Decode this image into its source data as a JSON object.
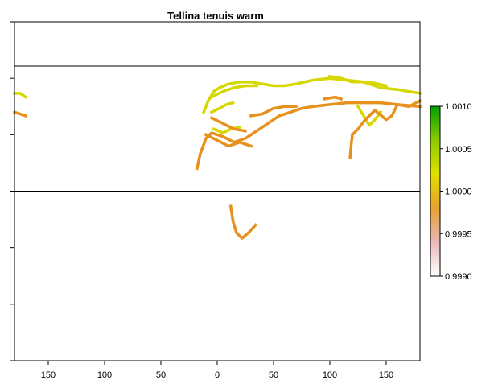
{
  "chart_data": {
    "type": "heatmap",
    "title": "Tellina tenuis warm",
    "xlabel": "",
    "ylabel": "",
    "xlim": [
      -180,
      180
    ],
    "ylim": [
      -90,
      90
    ],
    "x_ticks": [
      -150,
      -100,
      -50,
      0,
      50,
      100,
      150
    ],
    "x_tick_labels": [
      "150",
      "100",
      "50",
      "0",
      "50",
      "100",
      "150"
    ],
    "y_ticks": [
      -90,
      -60,
      -30,
      0,
      30,
      60,
      90
    ],
    "reference_lines_y": [
      0,
      66.5
    ],
    "legend": {
      "position": "right",
      "min": 0.999,
      "max": 1.001,
      "ticks": [
        0.999,
        0.9995,
        1.0,
        1.0005,
        1.001
      ],
      "tick_labels": [
        "0.9990",
        "0.9995",
        "1.0000",
        "1.0005",
        "1.0010"
      ],
      "colors": [
        "#ffffff",
        "#e8b8b8",
        "#e8a030",
        "#e0e000",
        "#8ccc00",
        "#00a000"
      ]
    },
    "series": [
      {
        "value": 1.0,
        "color": "#d7d700",
        "polylines": [
          [
            [
              -5,
              42
            ],
            [
              2,
              44
            ],
            [
              8,
              46
            ],
            [
              14,
              47
            ]
          ],
          [
            [
              -12,
              42
            ],
            [
              -8,
              48
            ],
            [
              -3,
              53
            ],
            [
              2,
              55
            ],
            [
              10,
              57
            ],
            [
              20,
              58
            ],
            [
              30,
              58
            ],
            [
              40,
              57
            ],
            [
              50,
              56
            ],
            [
              60,
              56
            ],
            [
              70,
              57
            ],
            [
              85,
              59
            ],
            [
              100,
              60
            ],
            [
              115,
              59
            ],
            [
              130,
              58
            ],
            [
              145,
              55
            ],
            [
              160,
              54
            ],
            [
              180,
              52
            ]
          ],
          [
            [
              -5,
              50
            ],
            [
              5,
              53
            ],
            [
              15,
              55
            ],
            [
              25,
              56
            ],
            [
              35,
              56
            ]
          ],
          [
            [
              100,
              61
            ],
            [
              110,
              60
            ],
            [
              120,
              58
            ],
            [
              135,
              58
            ],
            [
              150,
              56
            ]
          ],
          [
            [
              125,
              45
            ],
            [
              130,
              40
            ],
            [
              135,
              35
            ],
            [
              140,
              38
            ],
            [
              145,
              42
            ]
          ],
          [
            [
              -180,
              52
            ],
            [
              -175,
              52
            ],
            [
              -170,
              50
            ]
          ],
          [
            [
              -3,
              33
            ],
            [
              5,
              31
            ],
            [
              12,
              33
            ],
            [
              20,
              34
            ]
          ]
        ]
      },
      {
        "value": 0.9997,
        "color": "#e8901c",
        "polylines": [
          [
            [
              -18,
              12
            ],
            [
              -15,
              20
            ],
            [
              -10,
              28
            ],
            [
              -5,
              31
            ],
            [
              5,
              29
            ],
            [
              15,
              26
            ],
            [
              25,
              28
            ],
            [
              35,
              32
            ],
            [
              45,
              36
            ],
            [
              55,
              40
            ],
            [
              65,
              42
            ],
            [
              75,
              44
            ],
            [
              85,
              45
            ],
            [
              100,
              46
            ],
            [
              115,
              47
            ],
            [
              130,
              47
            ],
            [
              145,
              47
            ],
            [
              160,
              46
            ],
            [
              180,
              45
            ]
          ],
          [
            [
              -5,
              39
            ],
            [
              5,
              36
            ],
            [
              15,
              33
            ],
            [
              25,
              32
            ]
          ],
          [
            [
              -10,
              30
            ],
            [
              0,
              27
            ],
            [
              10,
              24
            ],
            [
              20,
              26
            ],
            [
              30,
              24
            ]
          ],
          [
            [
              30,
              40
            ],
            [
              40,
              41
            ],
            [
              50,
              44
            ],
            [
              60,
              45
            ],
            [
              70,
              45
            ]
          ],
          [
            [
              95,
              49
            ],
            [
              105,
              50
            ],
            [
              110,
              49
            ]
          ],
          [
            [
              120,
              30
            ],
            [
              125,
              33
            ],
            [
              130,
              37
            ],
            [
              135,
              40
            ],
            [
              140,
              43
            ],
            [
              150,
              38
            ],
            [
              155,
              40
            ],
            [
              160,
              46
            ],
            [
              170,
              45
            ],
            [
              180,
              48
            ]
          ],
          [
            [
              118,
              18
            ],
            [
              119,
              25
            ],
            [
              120,
              30
            ]
          ],
          [
            [
              -180,
              42
            ],
            [
              -175,
              41
            ],
            [
              -170,
              40
            ]
          ],
          [
            [
              12,
              -8
            ],
            [
              14,
              -16
            ],
            [
              17,
              -22
            ],
            [
              22,
              -25
            ],
            [
              28,
              -22
            ],
            [
              34,
              -18
            ]
          ]
        ]
      }
    ]
  }
}
